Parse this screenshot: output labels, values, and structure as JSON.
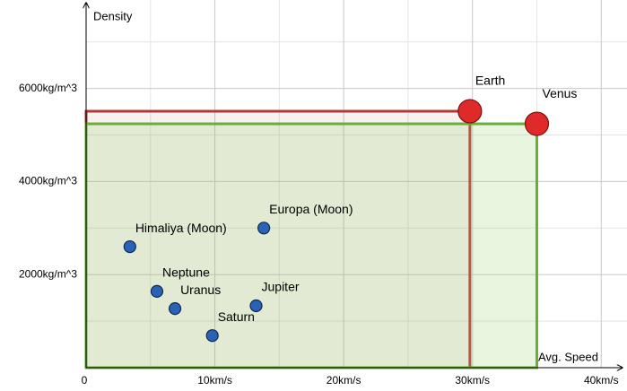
{
  "chart_data": {
    "type": "scatter",
    "x_label": "Avg. Speed",
    "y_label": "Density",
    "xlim": [
      0,
      42
    ],
    "ylim": [
      0,
      7900
    ],
    "xticks": [
      {
        "value": 0,
        "label": "0"
      },
      {
        "value": 10,
        "label": "10km/s"
      },
      {
        "value": 20,
        "label": "20km/s"
      },
      {
        "value": 30,
        "label": "30km/s"
      },
      {
        "value": 40,
        "label": "40km/s"
      }
    ],
    "yticks": [
      {
        "value": 2000,
        "label": "2000kg/m^3"
      },
      {
        "value": 4000,
        "label": "4000kg/m^3"
      },
      {
        "value": 6000,
        "label": "6000kg/m^3"
      }
    ],
    "minor_xticks": [
      5,
      15,
      25,
      35
    ],
    "minor_yticks": [
      1000,
      3000,
      5000,
      7000
    ],
    "grid": true,
    "series": [
      {
        "color": "#2a63b5",
        "label_color": "#2f6cc0",
        "labels": [
          "Himaliya (Moon)",
          "Europa (Moon)",
          "Neptune",
          "Uranus",
          "Jupiter",
          "Saturn"
        ],
        "x": [
          3.4,
          13.8,
          5.5,
          6.9,
          13.2,
          9.8
        ],
        "values": [
          2600,
          3000,
          1640,
          1270,
          1330,
          690
        ]
      },
      {
        "color": "#e02a2a",
        "label_color": "#e02a2a",
        "labels": [
          "Earth",
          "Venus"
        ],
        "x": [
          29.8,
          35
        ],
        "values": [
          5510,
          5240
        ],
        "rect_colors": [
          "#b23a3a",
          "#66b032"
        ],
        "rect_fills": [
          "rgba(190,120,110,0.10)",
          "rgba(150,210,110,0.22)"
        ]
      }
    ]
  }
}
